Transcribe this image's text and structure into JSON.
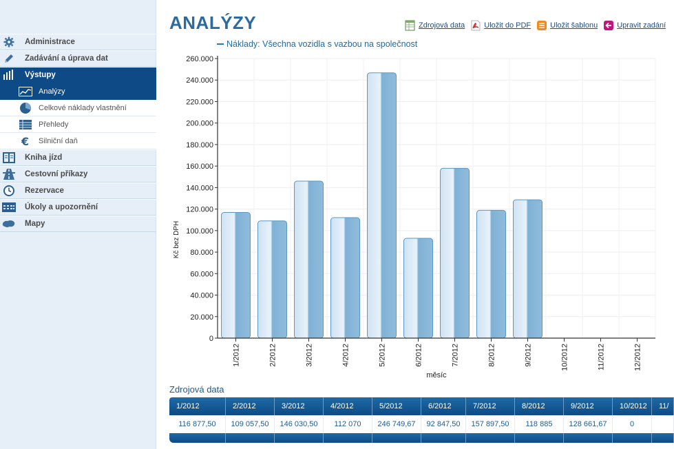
{
  "sidebar": {
    "items": [
      {
        "label": "Administrace",
        "icon": "gear-icon",
        "active": false
      },
      {
        "label": "Zadávání a úprava dat",
        "icon": "pencil-icon",
        "active": false
      },
      {
        "label": "Výstupy",
        "icon": "bars-icon",
        "active": true
      },
      {
        "label": "Kniha jízd",
        "icon": "book-icon",
        "active": false
      },
      {
        "label": "Cestovní příkazy",
        "icon": "road-icon",
        "active": false
      },
      {
        "label": "Rezervace",
        "icon": "clock-icon",
        "active": false
      },
      {
        "label": "Úkoly a upozornění",
        "icon": "calendar-icon",
        "active": false
      },
      {
        "label": "Mapy",
        "icon": "map-icon",
        "active": false
      }
    ],
    "subitems": [
      {
        "label": "Analýzy",
        "icon": "line-chart-icon",
        "active": true
      },
      {
        "label": "Celkové náklady vlastnění",
        "icon": "pie-chart-icon",
        "active": false
      },
      {
        "label": "Přehledy",
        "icon": "table-icon",
        "active": false
      },
      {
        "label": "Silniční daň",
        "icon": "euro-icon",
        "active": false
      }
    ]
  },
  "page": {
    "title": "ANALÝZY"
  },
  "toolbar": {
    "source_data": "Zdrojová data",
    "save_pdf": "Uložit do PDF",
    "save_template": "Uložit šablonu",
    "edit_input": "Upravit zadání"
  },
  "colors": {
    "accent": "#0e4a86",
    "bar_light": "#cfe2f3",
    "bar_dark": "#7fb1d6",
    "bar_border": "#5a97c4"
  },
  "chart_data": {
    "type": "bar",
    "legend": "Náklady: Všechna vozidla  s vazbou na společnost",
    "xlabel": "měsíc",
    "ylabel": "Kč bez DPH",
    "ylim": [
      0,
      260000
    ],
    "ytick_step": 20000,
    "y_tick_labels": [
      "0",
      "20.000",
      "40.000",
      "60.000",
      "80.000",
      "100.000",
      "120.000",
      "140.000",
      "160.000",
      "180.000",
      "200.000",
      "220.000",
      "240.000",
      "260.000"
    ],
    "categories": [
      "1/2012",
      "2/2012",
      "3/2012",
      "4/2012",
      "5/2012",
      "6/2012",
      "7/2012",
      "8/2012",
      "9/2012",
      "10/2012",
      "11/2012",
      "12/2012"
    ],
    "values": [
      116877.5,
      109057.5,
      146030.5,
      112070,
      246749.67,
      92847.5,
      157897.5,
      118885,
      128661.67,
      0,
      0,
      0
    ],
    "grid": true
  },
  "source_table": {
    "title": "Zdrojová data",
    "headers": [
      "1/2012",
      "2/2012",
      "3/2012",
      "4/2012",
      "5/2012",
      "6/2012",
      "7/2012",
      "8/2012",
      "9/2012",
      "10/2012",
      "11/"
    ],
    "values": [
      "116 877,50",
      "109 057,50",
      "146 030,50",
      "112 070",
      "246 749,67",
      "92 847,50",
      "157 897,50",
      "118 885",
      "128 661,67",
      "0",
      ""
    ]
  }
}
